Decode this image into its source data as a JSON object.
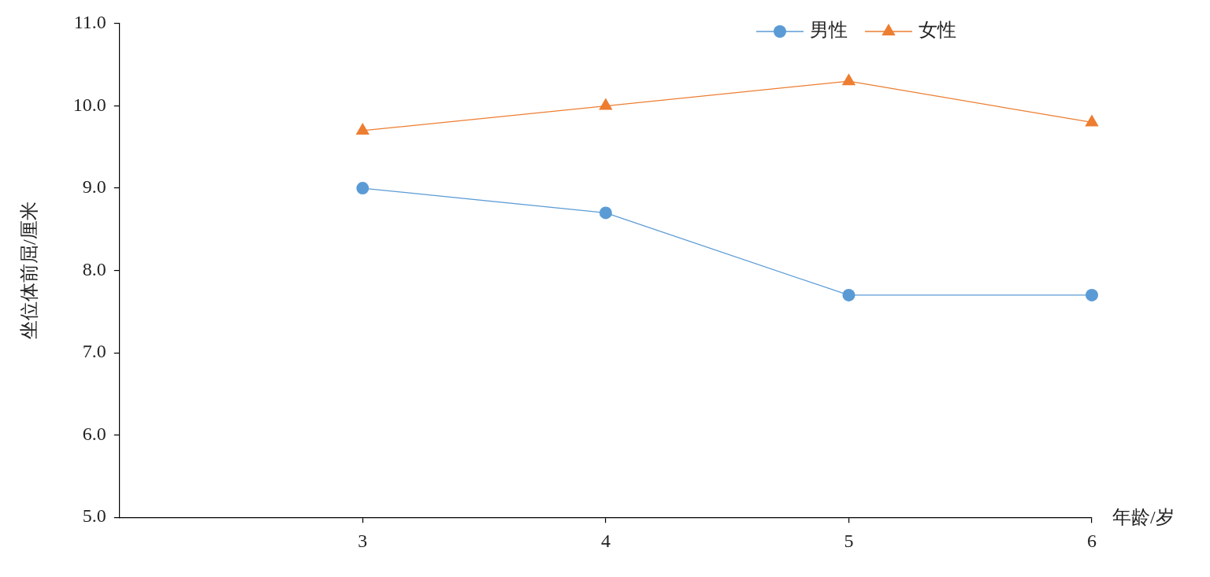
{
  "chart_data": {
    "type": "line",
    "xlabel": "年龄/岁",
    "ylabel": "坐位体前屈/厘米",
    "x": [
      3,
      4,
      5,
      6
    ],
    "series": [
      {
        "name": "男性",
        "color": "#5b9bd5",
        "marker": "circle",
        "values": [
          9.0,
          8.7,
          7.7,
          7.7
        ]
      },
      {
        "name": "女性",
        "color": "#ed7d31",
        "marker": "triangle",
        "values": [
          9.7,
          10.0,
          10.3,
          9.8
        ]
      }
    ],
    "xlim": [
      2,
      6
    ],
    "xticks": [
      3,
      4,
      5,
      6
    ],
    "ylim": [
      5,
      11
    ],
    "yticks": [
      {
        "value": 5,
        "label": "5.0"
      },
      {
        "value": 6,
        "label": "6.0"
      },
      {
        "value": 7,
        "label": "7.0"
      },
      {
        "value": 8,
        "label": "8.0"
      },
      {
        "value": 9,
        "label": "9.0"
      },
      {
        "value": 10,
        "label": "10.0"
      },
      {
        "value": 11,
        "label": "11.0"
      }
    ],
    "legend": "top right"
  }
}
